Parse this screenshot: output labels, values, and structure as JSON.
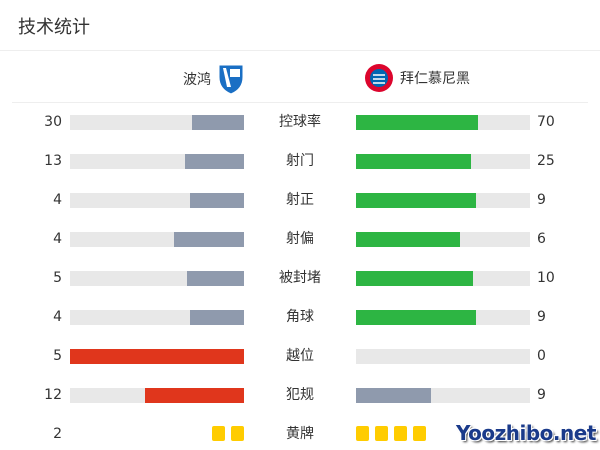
{
  "title": "技术统计",
  "home": {
    "name": "波鸿",
    "logo": "vfl-bochum-crest"
  },
  "away": {
    "name": "拜仁慕尼黑",
    "logo": "bayern-munich-crest"
  },
  "colors": {
    "grey": "#8f9aad",
    "green": "#2db543",
    "red": "#e0361c",
    "track": "#e8e8e8",
    "yellow": "#ffcc00"
  },
  "stats": [
    {
      "label": "控球率",
      "home": "30",
      "away": "70",
      "home_share": 0.3,
      "away_share": 0.7,
      "home_color": "grey",
      "away_color": "green"
    },
    {
      "label": "射门",
      "home": "13",
      "away": "25",
      "home_share": 0.34,
      "away_share": 0.66,
      "home_color": "grey",
      "away_color": "green"
    },
    {
      "label": "射正",
      "home": "4",
      "away": "9",
      "home_share": 0.31,
      "away_share": 0.69,
      "home_color": "grey",
      "away_color": "green"
    },
    {
      "label": "射偏",
      "home": "4",
      "away": "6",
      "home_share": 0.4,
      "away_share": 0.6,
      "home_color": "grey",
      "away_color": "green"
    },
    {
      "label": "被封堵",
      "home": "5",
      "away": "10",
      "home_share": 0.33,
      "away_share": 0.67,
      "home_color": "grey",
      "away_color": "green"
    },
    {
      "label": "角球",
      "home": "4",
      "away": "9",
      "home_share": 0.31,
      "away_share": 0.69,
      "home_color": "grey",
      "away_color": "green"
    },
    {
      "label": "越位",
      "home": "5",
      "away": "0",
      "home_share": 1.0,
      "away_share": 0.0,
      "home_color": "red",
      "away_color": "grey"
    },
    {
      "label": "犯规",
      "home": "12",
      "away": "9",
      "home_share": 0.57,
      "away_share": 0.43,
      "home_color": "red",
      "away_color": "grey"
    }
  ],
  "yellow_cards": {
    "label": "黄牌",
    "home": "2",
    "home_count": 2,
    "away_count": 4
  },
  "watermark": "Yoozhibo.net"
}
